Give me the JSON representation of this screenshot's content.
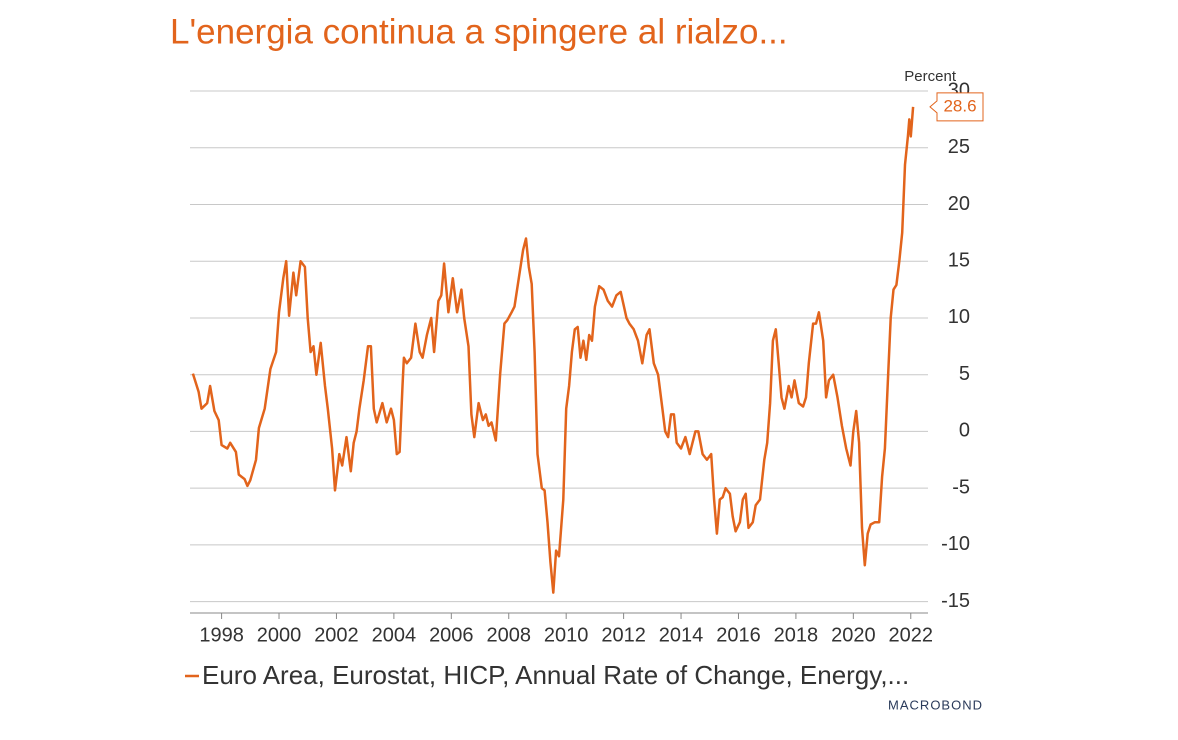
{
  "chart_data": {
    "type": "line",
    "title": "L'energia continua a spingere al rialzo...",
    "y_axis_label": "Percent",
    "logo": "MACROBOND",
    "grid": true,
    "xlim": [
      1996.9,
      2022.6
    ],
    "xticks": [
      1998,
      2000,
      2002,
      2004,
      2006,
      2008,
      2010,
      2012,
      2014,
      2016,
      2018,
      2020,
      2022
    ],
    "ylim": [
      -16,
      30
    ],
    "yticks": [
      -15,
      -10,
      -5,
      0,
      5,
      10,
      15,
      20,
      25,
      30
    ],
    "x": [
      1997.0,
      1997.2,
      1997.3,
      1997.5,
      1997.6,
      1997.75,
      1997.9,
      1998.0,
      1998.2,
      1998.3,
      1998.5,
      1998.6,
      1998.8,
      1998.9,
      1999.0,
      1999.2,
      1999.3,
      1999.5,
      1999.7,
      1999.9,
      2000.0,
      2000.15,
      2000.25,
      2000.35,
      2000.5,
      2000.6,
      2000.75,
      2000.9,
      2001.0,
      2001.1,
      2001.2,
      2001.3,
      2001.45,
      2001.6,
      2001.7,
      2001.85,
      2001.95,
      2002.1,
      2002.2,
      2002.35,
      2002.5,
      2002.6,
      2002.7,
      2002.8,
      2002.95,
      2003.1,
      2003.2,
      2003.3,
      2003.4,
      2003.6,
      2003.75,
      2003.9,
      2004.0,
      2004.1,
      2004.2,
      2004.3,
      2004.35,
      2004.45,
      2004.6,
      2004.75,
      2004.9,
      2005.0,
      2005.15,
      2005.3,
      2005.4,
      2005.55,
      2005.65,
      2005.75,
      2005.9,
      2006.05,
      2006.2,
      2006.35,
      2006.45,
      2006.6,
      2006.7,
      2006.8,
      2006.95,
      2007.1,
      2007.2,
      2007.3,
      2007.4,
      2007.55,
      2007.7,
      2007.85,
      2007.95,
      2008.1,
      2008.2,
      2008.35,
      2008.5,
      2008.6,
      2008.7,
      2008.8,
      2008.9,
      2009.0,
      2009.15,
      2009.25,
      2009.35,
      2009.45,
      2009.55,
      2009.65,
      2009.75,
      2009.9,
      2010.0,
      2010.1,
      2010.2,
      2010.3,
      2010.4,
      2010.5,
      2010.6,
      2010.7,
      2010.8,
      2010.9,
      2011.0,
      2011.15,
      2011.3,
      2011.45,
      2011.6,
      2011.75,
      2011.9,
      2012.1,
      2012.2,
      2012.35,
      2012.5,
      2012.65,
      2012.8,
      2012.9,
      2013.05,
      2013.2,
      2013.35,
      2013.45,
      2013.55,
      2013.65,
      2013.75,
      2013.85,
      2014.0,
      2014.15,
      2014.3,
      2014.4,
      2014.5,
      2014.6,
      2014.75,
      2014.9,
      2015.05,
      2015.15,
      2015.25,
      2015.35,
      2015.45,
      2015.55,
      2015.7,
      2015.8,
      2015.9,
      2016.05,
      2016.15,
      2016.25,
      2016.35,
      2016.5,
      2016.6,
      2016.75,
      2016.9,
      2017.0,
      2017.1,
      2017.2,
      2017.3,
      2017.4,
      2017.5,
      2017.6,
      2017.75,
      2017.85,
      2017.95,
      2018.1,
      2018.25,
      2018.35,
      2018.45,
      2018.6,
      2018.7,
      2018.8,
      2018.95,
      2019.05,
      2019.15,
      2019.3,
      2019.45,
      2019.6,
      2019.75,
      2019.9,
      2020.0,
      2020.1,
      2020.2,
      2020.3,
      2020.4,
      2020.5,
      2020.6,
      2020.75,
      2020.9,
      2021.0,
      2021.1,
      2021.2,
      2021.3,
      2021.4,
      2021.5,
      2021.6,
      2021.7,
      2021.8,
      2021.9,
      2021.95,
      2022.0,
      2022.08
    ],
    "series": [
      {
        "name": "Euro Area, Eurostat, HICP, Annual Rate of Change, Energy,...",
        "color": "#e2641c",
        "values": [
          5.1,
          3.5,
          2.0,
          2.5,
          4.0,
          1.8,
          1.0,
          -1.2,
          -1.5,
          -1.0,
          -1.8,
          -3.8,
          -4.2,
          -4.8,
          -4.3,
          -2.5,
          0.3,
          2.0,
          5.5,
          7.0,
          10.5,
          13.5,
          15.0,
          10.2,
          14.0,
          12.0,
          15.0,
          14.5,
          10.0,
          7.0,
          7.5,
          5.0,
          7.8,
          4.0,
          2.0,
          -1.5,
          -5.2,
          -2.0,
          -3.0,
          -0.5,
          -3.5,
          -1.0,
          0.0,
          2.0,
          4.5,
          7.5,
          7.5,
          2.0,
          0.8,
          2.5,
          0.8,
          2.0,
          1.0,
          -2.0,
          -1.8,
          4.0,
          6.5,
          6.0,
          6.5,
          9.5,
          7.0,
          6.5,
          8.5,
          10.0,
          7.0,
          11.5,
          12.0,
          14.8,
          10.5,
          13.5,
          10.5,
          12.5,
          10.0,
          7.5,
          1.5,
          -0.5,
          2.5,
          1.0,
          1.5,
          0.5,
          0.8,
          -0.8,
          5.0,
          9.5,
          9.8,
          10.5,
          11.0,
          13.5,
          16.0,
          17.0,
          14.5,
          13.0,
          7.0,
          -2.0,
          -5.0,
          -5.2,
          -8.0,
          -11.5,
          -14.2,
          -10.5,
          -11.0,
          -6.0,
          2.0,
          4.0,
          7.0,
          9.0,
          9.2,
          6.5,
          8.0,
          6.3,
          8.5,
          8.0,
          11.0,
          12.8,
          12.5,
          11.5,
          11.0,
          12.0,
          12.3,
          10.0,
          9.5,
          9.0,
          8.0,
          6.0,
          8.5,
          9.0,
          6.0,
          5.0,
          2.0,
          0.0,
          -0.5,
          1.5,
          1.5,
          -1.0,
          -1.5,
          -0.5,
          -2.0,
          -1.0,
          0.0,
          0.0,
          -2.0,
          -2.5,
          -2.0,
          -6.0,
          -9.0,
          -6.0,
          -5.8,
          -5.0,
          -5.5,
          -7.5,
          -8.8,
          -8.0,
          -6.0,
          -5.5,
          -8.5,
          -8.0,
          -6.5,
          -6.0,
          -2.5,
          -1.0,
          2.5,
          8.0,
          9.0,
          6.0,
          3.0,
          2.0,
          4.0,
          3.0,
          4.5,
          2.5,
          2.2,
          3.0,
          6.0,
          9.5,
          9.5,
          10.5,
          8.0,
          3.0,
          4.5,
          5.0,
          3.0,
          0.5,
          -1.5,
          -3.0,
          0.0,
          1.8,
          -1.0,
          -8.5,
          -11.8,
          -9.0,
          -8.2,
          -8.0,
          -8.0,
          -4.0,
          -1.5,
          4.3,
          10.0,
          12.5,
          12.9,
          15.0,
          17.5,
          23.5,
          26.0,
          27.5,
          26.0,
          28.6
        ]
      }
    ]
  }
}
